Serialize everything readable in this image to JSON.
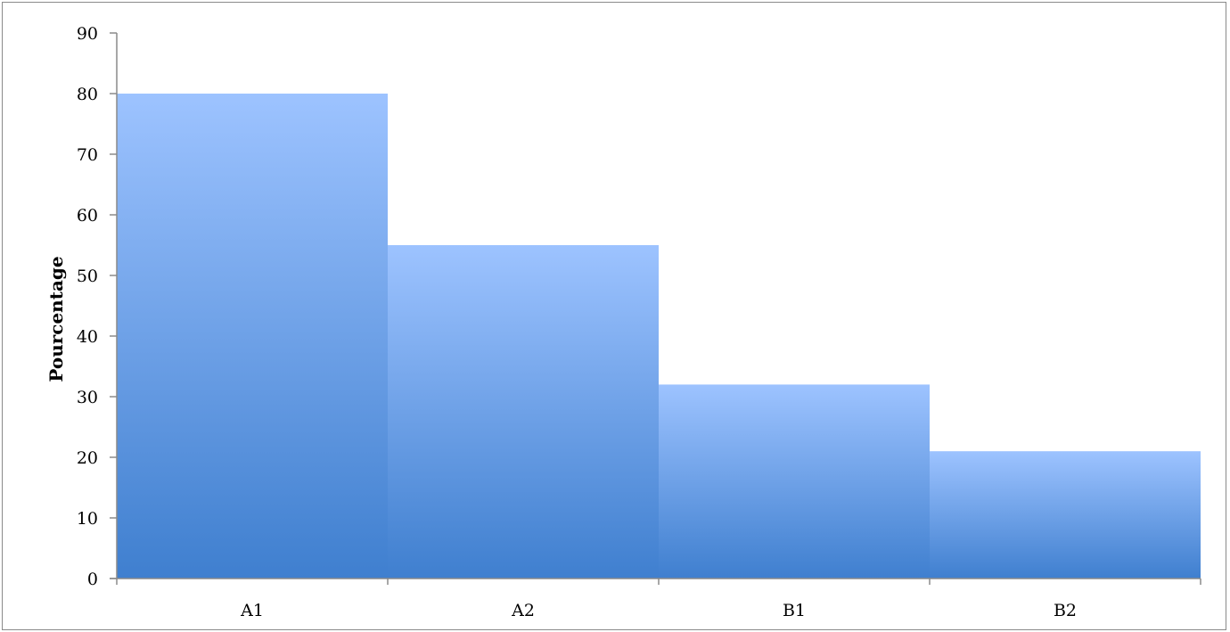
{
  "chart_data": {
    "type": "bar",
    "categories": [
      "A1",
      "A2",
      "B1",
      "B2"
    ],
    "values": [
      80,
      55,
      32,
      21
    ],
    "title": "",
    "xlabel": "",
    "ylabel": "Pourcentage",
    "ylim": [
      0,
      90
    ],
    "yticks": [
      0,
      10,
      20,
      30,
      40,
      50,
      60,
      70,
      80,
      90
    ],
    "grid": false,
    "legend": "none",
    "colors": {
      "bar_top": "#9dc3ff",
      "bar_bottom": "#3f7fcf",
      "axis": "#8a8a8a",
      "frame": "#8a8a8a"
    }
  }
}
